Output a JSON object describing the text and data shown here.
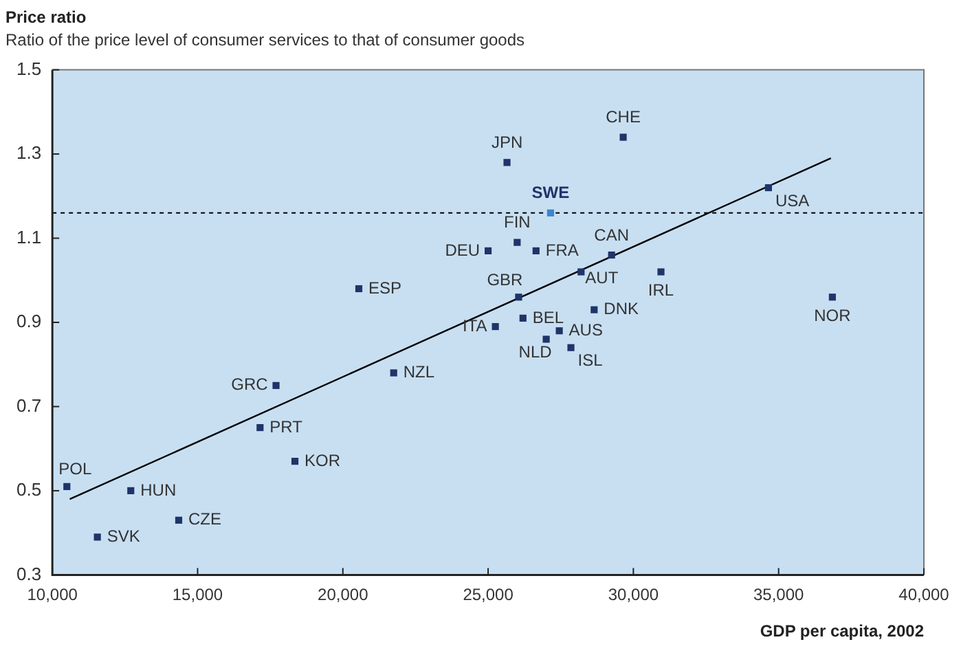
{
  "chart_data": {
    "type": "scatter",
    "title": "Price ratio",
    "subtitle": "Ratio of the price level of consumer services to that of consumer goods",
    "xlabel": "GDP per capita, 2002",
    "series": [
      {
        "type": "scatter",
        "color": "#1f3468",
        "marker": "square",
        "x": [
          10500,
          11550,
          12700,
          14350,
          17150,
          17700,
          18350,
          21750,
          20550,
          25000,
          25650,
          29650,
          27150,
          26000,
          26650,
          29250,
          28200,
          30950,
          34650,
          26050,
          28650,
          26200,
          36850,
          25250,
          27450,
          27000,
          27850
        ],
        "values": [
          0.51,
          0.39,
          0.5,
          0.43,
          0.65,
          0.75,
          0.57,
          0.78,
          0.98,
          1.07,
          1.28,
          1.34,
          1.16,
          1.09,
          1.07,
          1.06,
          1.02,
          1.02,
          1.22,
          0.96,
          0.93,
          0.91,
          0.96,
          0.89,
          0.88,
          0.86,
          0.84
        ],
        "colors": [
          "#1f3468",
          "#1f3468",
          "#1f3468",
          "#1f3468",
          "#1f3468",
          "#1f3468",
          "#1f3468",
          "#1f3468",
          "#1f3468",
          "#1f3468",
          "#1f3468",
          "#1f3468",
          "#3a86d0",
          "#1f3468",
          "#1f3468",
          "#1f3468",
          "#1f3468",
          "#1f3468",
          "#1f3468",
          "#1f3468",
          "#1f3468",
          "#1f3468",
          "#1f3468",
          "#1f3468",
          "#1f3468",
          "#1f3468",
          "#1f3468"
        ]
      },
      {
        "type": "line",
        "color": "#000000",
        "marker": "none",
        "line_style": "solid",
        "x": [
          10600,
          36800
        ],
        "values": [
          0.48,
          1.29
        ]
      }
    ],
    "annotations": [
      {
        "text": "POL",
        "x": 10500,
        "y": 0.51
      },
      {
        "text": "SVK",
        "x": 11550,
        "y": 0.39
      },
      {
        "text": "HUN",
        "x": 12700,
        "y": 0.5
      },
      {
        "text": "CZE",
        "x": 14350,
        "y": 0.43
      },
      {
        "text": "PRT",
        "x": 17150,
        "y": 0.65
      },
      {
        "text": "GRC",
        "x": 17700,
        "y": 0.75
      },
      {
        "text": "KOR",
        "x": 18350,
        "y": 0.57
      },
      {
        "text": "NZL",
        "x": 21750,
        "y": 0.78
      },
      {
        "text": "ESP",
        "x": 20550,
        "y": 0.98
      },
      {
        "text": "DEU",
        "x": 25000,
        "y": 1.07
      },
      {
        "text": "JPN",
        "x": 25650,
        "y": 1.28
      },
      {
        "text": "CHE",
        "x": 29650,
        "y": 1.34
      },
      {
        "text": "SWE",
        "x": 27150,
        "y": 1.16
      },
      {
        "text": "FIN",
        "x": 26000,
        "y": 1.09
      },
      {
        "text": "FRA",
        "x": 26650,
        "y": 1.07
      },
      {
        "text": "CAN",
        "x": 29250,
        "y": 1.06
      },
      {
        "text": "AUT",
        "x": 28200,
        "y": 1.02
      },
      {
        "text": "IRL",
        "x": 30950,
        "y": 1.02
      },
      {
        "text": "USA",
        "x": 34650,
        "y": 1.22
      },
      {
        "text": "GBR",
        "x": 26050,
        "y": 0.96
      },
      {
        "text": "DNK",
        "x": 28650,
        "y": 0.93
      },
      {
        "text": "BEL",
        "x": 26200,
        "y": 0.91
      },
      {
        "text": "NOR",
        "x": 36850,
        "y": 0.96
      },
      {
        "text": "ITA",
        "x": 25250,
        "y": 0.89
      },
      {
        "text": "AUS",
        "x": 27450,
        "y": 0.88
      },
      {
        "text": "NLD",
        "x": 27000,
        "y": 0.86
      },
      {
        "text": "ISL",
        "x": 27850,
        "y": 0.84
      }
    ],
    "ref_lines": [
      {
        "axis": "y",
        "value": 1.16,
        "color": "#000000",
        "line_style": "dashed"
      }
    ],
    "xlim": [
      10000,
      40000
    ],
    "xticks": [
      {
        "value": 10000,
        "label": "10,000"
      },
      {
        "value": 15000,
        "label": "15,000"
      },
      {
        "value": 20000,
        "label": "20,000"
      },
      {
        "value": 25000,
        "label": "25,000"
      },
      {
        "value": 30000,
        "label": "30,000"
      },
      {
        "value": 35000,
        "label": "35,000"
      },
      {
        "value": 40000,
        "label": "40,000"
      }
    ],
    "ylim": [
      0.3,
      1.5
    ],
    "yticks": [
      0.3,
      0.5,
      0.7,
      0.9,
      1.1,
      1.3,
      1.5
    ],
    "grid": false,
    "legend": false
  }
}
